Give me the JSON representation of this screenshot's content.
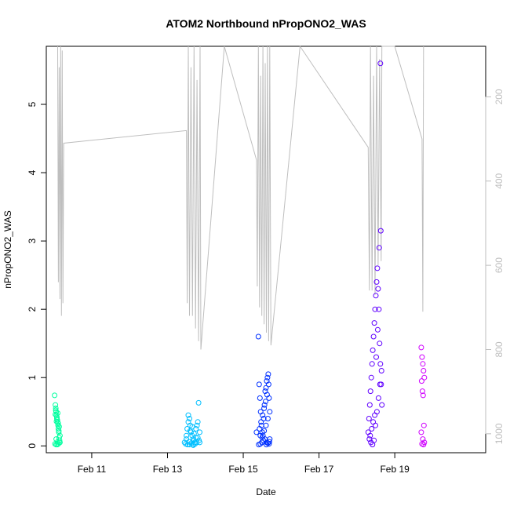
{
  "chart_data": {
    "type": "scatter",
    "title": "ATOM2 Northbound nPropONO2_WAS",
    "xlabel": "Date",
    "ylabel": "nPropONO2_WAS",
    "x_unit": "day of February 2017",
    "xlim": [
      9.8,
      21.4
    ],
    "ylim": [
      -0.1,
      5.85
    ],
    "x_ticks": [
      11,
      13,
      15,
      17,
      19
    ],
    "x_tick_labels": [
      "Feb 11",
      "Feb 13",
      "Feb 15",
      "Feb 17",
      "Feb 19"
    ],
    "y_ticks": [
      0,
      1,
      2,
      3,
      4,
      5
    ],
    "y_tick_labels": [
      "0",
      "1",
      "2",
      "3",
      "4",
      "5"
    ],
    "y2_ticks": [
      200,
      400,
      600,
      800,
      1000
    ],
    "y2_tick_labels": [
      "200",
      "400",
      "600",
      "800",
      "1000"
    ],
    "y2_lim": [
      1045,
      80
    ],
    "y2_color": "#bebebe",
    "pressure_profile": [
      [
        10.1,
        10
      ],
      [
        10.12,
        640
      ],
      [
        10.14,
        130
      ],
      [
        10.16,
        680
      ],
      [
        10.18,
        40
      ],
      [
        10.2,
        720
      ],
      [
        10.22,
        90
      ],
      [
        10.24,
        690
      ],
      [
        10.26,
        310
      ],
      [
        13.5,
        280
      ],
      [
        13.52,
        690
      ],
      [
        13.55,
        50
      ],
      [
        13.58,
        720
      ],
      [
        13.62,
        130
      ],
      [
        13.66,
        720
      ],
      [
        13.7,
        30
      ],
      [
        13.74,
        750
      ],
      [
        13.78,
        160
      ],
      [
        13.82,
        780
      ],
      [
        13.86,
        60
      ],
      [
        13.88,
        800
      ],
      [
        14.5,
        10
      ],
      [
        15.35,
        350
      ],
      [
        15.37,
        650
      ],
      [
        15.4,
        40
      ],
      [
        15.43,
        700
      ],
      [
        15.46,
        150
      ],
      [
        15.49,
        720
      ],
      [
        15.52,
        50
      ],
      [
        15.55,
        740
      ],
      [
        15.58,
        120
      ],
      [
        15.61,
        760
      ],
      [
        15.64,
        30
      ],
      [
        15.67,
        780
      ],
      [
        15.7,
        80
      ],
      [
        15.73,
        790
      ],
      [
        16.5,
        10
      ],
      [
        18.3,
        320
      ],
      [
        18.33,
        660
      ],
      [
        18.36,
        60
      ],
      [
        18.4,
        660
      ],
      [
        18.44,
        150
      ],
      [
        18.48,
        670
      ],
      [
        18.52,
        50
      ],
      [
        18.56,
        600
      ],
      [
        18.6,
        110
      ],
      [
        18.64,
        590
      ],
      [
        18.66,
        60
      ],
      [
        19.0,
        10
      ],
      [
        19.72,
        300
      ],
      [
        19.74,
        710
      ],
      [
        19.76,
        20
      ]
    ],
    "series": [
      {
        "color": "#00ff9f",
        "x": [
          10.02,
          10.04,
          10.05,
          10.06,
          10.07,
          10.08,
          10.09,
          10.1,
          10.11,
          10.12,
          10.13,
          10.14,
          10.15,
          10.16,
          10.03,
          10.06,
          10.09,
          10.12,
          10.15,
          10.05,
          10.08,
          10.11,
          10.14,
          10.04,
          10.07,
          10.1,
          10.13,
          10.16,
          10.06,
          10.1
        ],
        "y": [
          0.74,
          0.6,
          0.55,
          0.5,
          0.45,
          0.4,
          0.38,
          0.35,
          0.3,
          0.25,
          0.2,
          0.12,
          0.08,
          0.05,
          0.03,
          0.02,
          0.02,
          0.03,
          0.05,
          0.52,
          0.42,
          0.33,
          0.28,
          0.46,
          0.36,
          0.48,
          0.22,
          0.15,
          0.1,
          0.06
        ]
      },
      {
        "color": "#00bfff",
        "x": [
          13.45,
          13.5,
          13.52,
          13.55,
          13.58,
          13.6,
          13.62,
          13.65,
          13.68,
          13.7,
          13.72,
          13.75,
          13.78,
          13.8,
          13.82,
          13.85,
          13.48,
          13.53,
          13.57,
          13.63,
          13.67,
          13.73,
          13.77,
          13.83,
          13.5,
          13.6,
          13.7,
          13.8,
          13.55,
          13.65,
          13.75,
          13.85,
          13.58,
          13.68
        ],
        "y": [
          0.05,
          0.1,
          0.25,
          0.45,
          0.4,
          0.3,
          0.2,
          0.15,
          0.1,
          0.08,
          0.05,
          0.12,
          0.3,
          0.35,
          0.63,
          0.2,
          0.03,
          0.02,
          0.06,
          0.04,
          0.02,
          0.03,
          0.05,
          0.08,
          0.15,
          0.22,
          0.18,
          0.12,
          0.35,
          0.28,
          0.25,
          0.05,
          0.02,
          0.01
        ]
      },
      {
        "color": "#0030ff",
        "x": [
          15.4,
          15.42,
          15.44,
          15.46,
          15.48,
          15.5,
          15.52,
          15.54,
          15.56,
          15.58,
          15.6,
          15.62,
          15.64,
          15.66,
          15.68,
          15.7,
          15.41,
          15.45,
          15.49,
          15.53,
          15.57,
          15.61,
          15.65,
          15.69,
          15.43,
          15.47,
          15.51,
          15.55,
          15.59,
          15.63,
          15.67,
          15.35,
          15.5,
          15.6,
          15.7,
          15.55,
          15.65,
          15.45,
          15.62,
          15.68
        ],
        "y": [
          1.6,
          0.9,
          0.7,
          0.5,
          0.3,
          0.2,
          0.15,
          0.4,
          0.6,
          0.8,
          0.85,
          0.95,
          1.0,
          1.05,
          0.7,
          0.5,
          0.02,
          0.03,
          0.05,
          0.08,
          0.1,
          0.02,
          0.04,
          0.06,
          0.25,
          0.35,
          0.45,
          0.55,
          0.65,
          0.75,
          0.9,
          0.2,
          0.12,
          0.3,
          0.1,
          0.22,
          0.4,
          0.15,
          0.05,
          0.03
        ]
      },
      {
        "color": "#6000ff",
        "x": [
          18.3,
          18.32,
          18.34,
          18.36,
          18.38,
          18.4,
          18.42,
          18.44,
          18.46,
          18.48,
          18.5,
          18.52,
          18.54,
          18.56,
          18.58,
          18.6,
          18.62,
          18.64,
          18.66,
          18.33,
          18.37,
          18.41,
          18.45,
          18.49,
          18.53,
          18.57,
          18.61,
          18.65,
          18.35,
          18.39,
          18.43,
          18.47,
          18.51,
          18.55,
          18.59,
          18.63,
          18.62
        ],
        "y": [
          0.2,
          0.4,
          0.6,
          0.8,
          1.0,
          1.2,
          1.4,
          1.6,
          1.8,
          2.0,
          2.2,
          2.4,
          2.6,
          2.3,
          2.0,
          1.5,
          1.2,
          0.9,
          0.6,
          0.1,
          0.05,
          0.02,
          0.08,
          0.3,
          0.5,
          0.7,
          0.9,
          1.1,
          0.15,
          0.25,
          0.35,
          0.45,
          1.3,
          1.7,
          2.9,
          3.15,
          5.6
        ]
      },
      {
        "color": "#d000ff",
        "x": [
          19.7,
          19.72,
          19.74,
          19.76,
          19.78,
          19.71,
          19.73,
          19.75,
          19.77,
          19.7,
          19.74,
          19.78,
          19.72,
          19.76
        ],
        "y": [
          1.44,
          1.3,
          1.2,
          1.1,
          1.0,
          0.95,
          0.8,
          0.74,
          0.3,
          0.2,
          0.1,
          0.05,
          0.03,
          0.02
        ]
      }
    ]
  }
}
